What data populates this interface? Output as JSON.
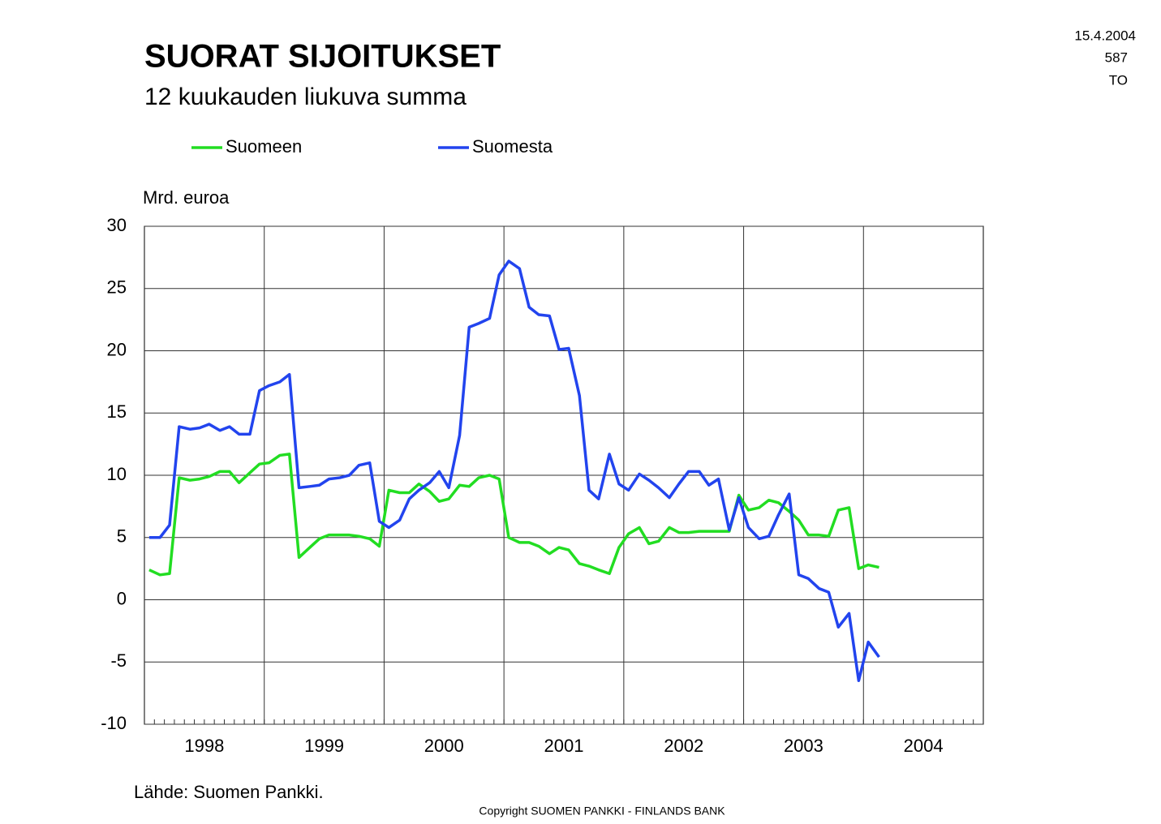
{
  "chart_data": {
    "type": "line",
    "title": "SUORAT SIJOITUKSET",
    "subtitle": "12 kuukauden liukuva summa",
    "y_label": "Mrd. euroa",
    "date": "15.4.2004",
    "number": "587",
    "code": "TO",
    "source": "Lähde: Suomen Pankki.",
    "copyright": "Copyright SUOMEN PANKKI - FINLANDS BANK",
    "xlim": [
      1998,
      2005
    ],
    "xticks": [
      {
        "value": 1998.5,
        "label": "1998"
      },
      {
        "value": 1999.5,
        "label": "1999"
      },
      {
        "value": 2000.5,
        "label": "2000"
      },
      {
        "value": 2001.5,
        "label": "2001"
      },
      {
        "value": 2002.5,
        "label": "2002"
      },
      {
        "value": 2003.5,
        "label": "2003"
      },
      {
        "value": 2004.5,
        "label": "2004"
      }
    ],
    "x_gridlines": [
      1999,
      2000,
      2001,
      2002,
      2003,
      2004
    ],
    "ylim": [
      -10,
      30
    ],
    "yticks": [
      -10,
      -5,
      0,
      5,
      10,
      15,
      20,
      25,
      30
    ],
    "grid": true,
    "x": [
      1998.04,
      1998.13,
      1998.21,
      1998.29,
      1998.38,
      1998.46,
      1998.54,
      1998.63,
      1998.71,
      1998.79,
      1998.88,
      1998.96,
      1999.04,
      1999.13,
      1999.21,
      1999.29,
      1999.38,
      1999.46,
      1999.54,
      1999.63,
      1999.71,
      1999.79,
      1999.88,
      1999.96,
      2000.04,
      2000.13,
      2000.21,
      2000.29,
      2000.38,
      2000.46,
      2000.54,
      2000.63,
      2000.71,
      2000.79,
      2000.88,
      2000.96,
      2001.04,
      2001.13,
      2001.21,
      2001.29,
      2001.38,
      2001.46,
      2001.54,
      2001.63,
      2001.71,
      2001.79,
      2001.88,
      2001.96,
      2002.04,
      2002.13,
      2002.21,
      2002.29,
      2002.38,
      2002.46,
      2002.54,
      2002.63,
      2002.71,
      2002.79,
      2002.88,
      2002.96,
      2003.04,
      2003.13,
      2003.21,
      2003.29,
      2003.38,
      2003.46,
      2003.54,
      2003.63,
      2003.71,
      2003.79,
      2003.88,
      2003.96,
      2004.04,
      2004.13
    ],
    "series": [
      {
        "name": "Suomeen",
        "color": "#22dd22",
        "values": [
          2.4,
          2.0,
          2.1,
          9.8,
          9.6,
          9.7,
          9.9,
          10.3,
          10.3,
          9.4,
          10.2,
          10.9,
          11.0,
          11.6,
          11.7,
          3.4,
          4.2,
          4.9,
          5.2,
          5.2,
          5.2,
          5.1,
          4.9,
          4.3,
          8.8,
          8.6,
          8.6,
          9.3,
          8.7,
          7.9,
          8.1,
          9.2,
          9.1,
          9.8,
          10.0,
          9.7,
          5.0,
          4.6,
          4.6,
          4.3,
          3.7,
          4.2,
          4.0,
          2.9,
          2.7,
          2.4,
          2.1,
          4.2,
          5.3,
          5.8,
          4.5,
          4.7,
          5.8,
          5.4,
          5.4,
          5.5,
          5.5,
          5.5,
          5.5,
          8.4,
          7.2,
          7.4,
          8.0,
          7.8,
          7.1,
          6.4,
          5.2,
          5.2,
          5.1,
          7.2,
          7.4,
          2.5,
          2.8,
          2.6
        ]
      },
      {
        "name": "Suomesta",
        "color": "#2244ee",
        "values": [
          5.0,
          5.0,
          6.0,
          13.9,
          13.7,
          13.8,
          14.1,
          13.6,
          13.9,
          13.3,
          13.3,
          16.8,
          17.2,
          17.5,
          18.1,
          9.0,
          9.1,
          9.2,
          9.7,
          9.8,
          10.0,
          10.8,
          11.0,
          6.3,
          5.8,
          6.4,
          8.1,
          8.8,
          9.4,
          10.3,
          9.0,
          13.2,
          21.9,
          22.2,
          22.6,
          26.1,
          27.2,
          26.6,
          23.5,
          22.9,
          22.8,
          20.1,
          20.2,
          16.4,
          8.8,
          8.1,
          11.7,
          9.3,
          8.8,
          10.1,
          9.6,
          9.0,
          8.2,
          9.3,
          10.3,
          10.3,
          9.2,
          9.7,
          5.6,
          8.2,
          5.8,
          4.9,
          5.1,
          6.8,
          8.5,
          2.0,
          1.7,
          0.9,
          0.6,
          -2.2,
          -1.1,
          -6.5,
          -3.4,
          -4.6
        ]
      }
    ]
  }
}
